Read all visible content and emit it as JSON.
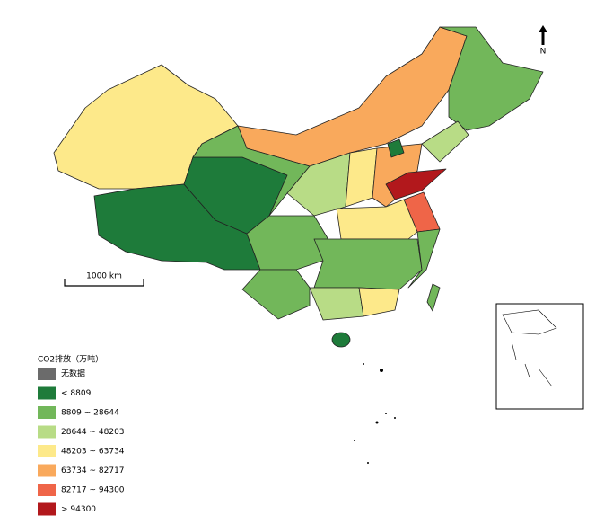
{
  "legend": {
    "title": "CO2排放（万吨）",
    "items": [
      {
        "label": "无数据",
        "color": "#6b6b6b"
      },
      {
        "label": "< 8809",
        "color": "#1e7b3a"
      },
      {
        "label": "8809 ~ 28644",
        "color": "#72b75a"
      },
      {
        "label": "28644 ~ 48203",
        "color": "#b8dc86"
      },
      {
        "label": "48203 ~ 63734",
        "color": "#fde98a"
      },
      {
        "label": "63734 ~ 82717",
        "color": "#f9a95c"
      },
      {
        "label": "82717 ~ 94300",
        "color": "#ef6548"
      },
      {
        "label": "> 94300",
        "color": "#b2181c"
      }
    ]
  },
  "scale_bar": "1000 km",
  "north": "N"
}
